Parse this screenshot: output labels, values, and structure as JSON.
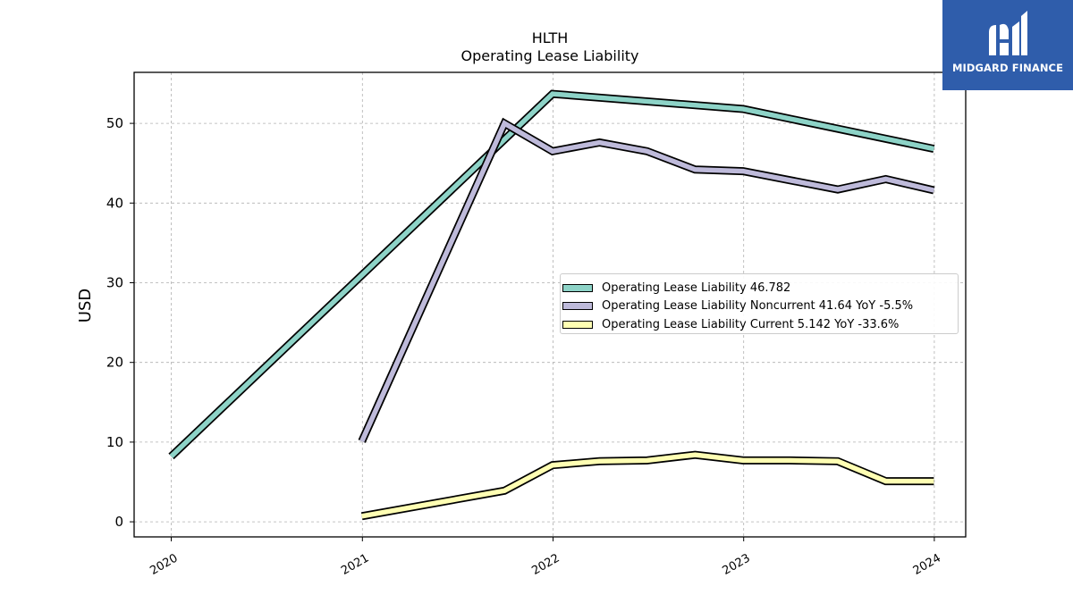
{
  "chart_data": {
    "type": "line",
    "title": "HLTH",
    "subtitle": "Operating Lease Liability",
    "ylabel": "USD",
    "xlabel": "",
    "xlim": [
      "2019-10-22",
      "2024-03-01"
    ],
    "ylim": [
      -1.9,
      56.4
    ],
    "yticks": [
      0,
      10,
      20,
      30,
      40,
      50
    ],
    "xticks": [
      "2020",
      "2021",
      "2022",
      "2023",
      "2024"
    ],
    "grid": true,
    "legend_position": "center-right",
    "series": [
      {
        "name": "Operating Lease Liability",
        "legend_label": "Operating Lease Liability  46.782",
        "color": "#8dd3c7",
        "points": [
          [
            "2020-01-01",
            8.2
          ],
          [
            "2021-12-31",
            53.7
          ],
          [
            "2022-12-31",
            51.8
          ],
          [
            "2023-12-31",
            46.8
          ]
        ]
      },
      {
        "name": "Operating Lease Liability Noncurrent",
        "legend_label": "Operating Lease Liability Noncurrent  41.64 YoY -5.5%",
        "color": "#bebada",
        "points": [
          [
            "2020-12-31",
            10.1
          ],
          [
            "2021-09-30",
            50.0
          ],
          [
            "2021-12-31",
            46.5
          ],
          [
            "2022-03-31",
            47.6
          ],
          [
            "2022-06-30",
            46.5
          ],
          [
            "2022-09-30",
            44.2
          ],
          [
            "2022-12-31",
            44.0
          ],
          [
            "2023-06-30",
            41.7
          ],
          [
            "2023-09-30",
            43.0
          ],
          [
            "2023-12-31",
            41.6
          ]
        ]
      },
      {
        "name": "Operating Lease Liability Current",
        "legend_label": "Operating Lease Liability Current  5.142 YoY -33.6%",
        "color": "#ffffb3",
        "points": [
          [
            "2020-12-31",
            0.7
          ],
          [
            "2021-09-30",
            3.9
          ],
          [
            "2021-12-31",
            7.1
          ],
          [
            "2022-03-31",
            7.6
          ],
          [
            "2022-06-30",
            7.7
          ],
          [
            "2022-09-30",
            8.4
          ],
          [
            "2022-12-31",
            7.7
          ],
          [
            "2023-03-31",
            7.7
          ],
          [
            "2023-06-30",
            7.6
          ],
          [
            "2023-09-30",
            5.1
          ],
          [
            "2023-12-31",
            5.1
          ]
        ]
      }
    ]
  },
  "branding": {
    "logo_text": "MIDGARD FINANCE",
    "logo_color": "#2f5dab"
  }
}
